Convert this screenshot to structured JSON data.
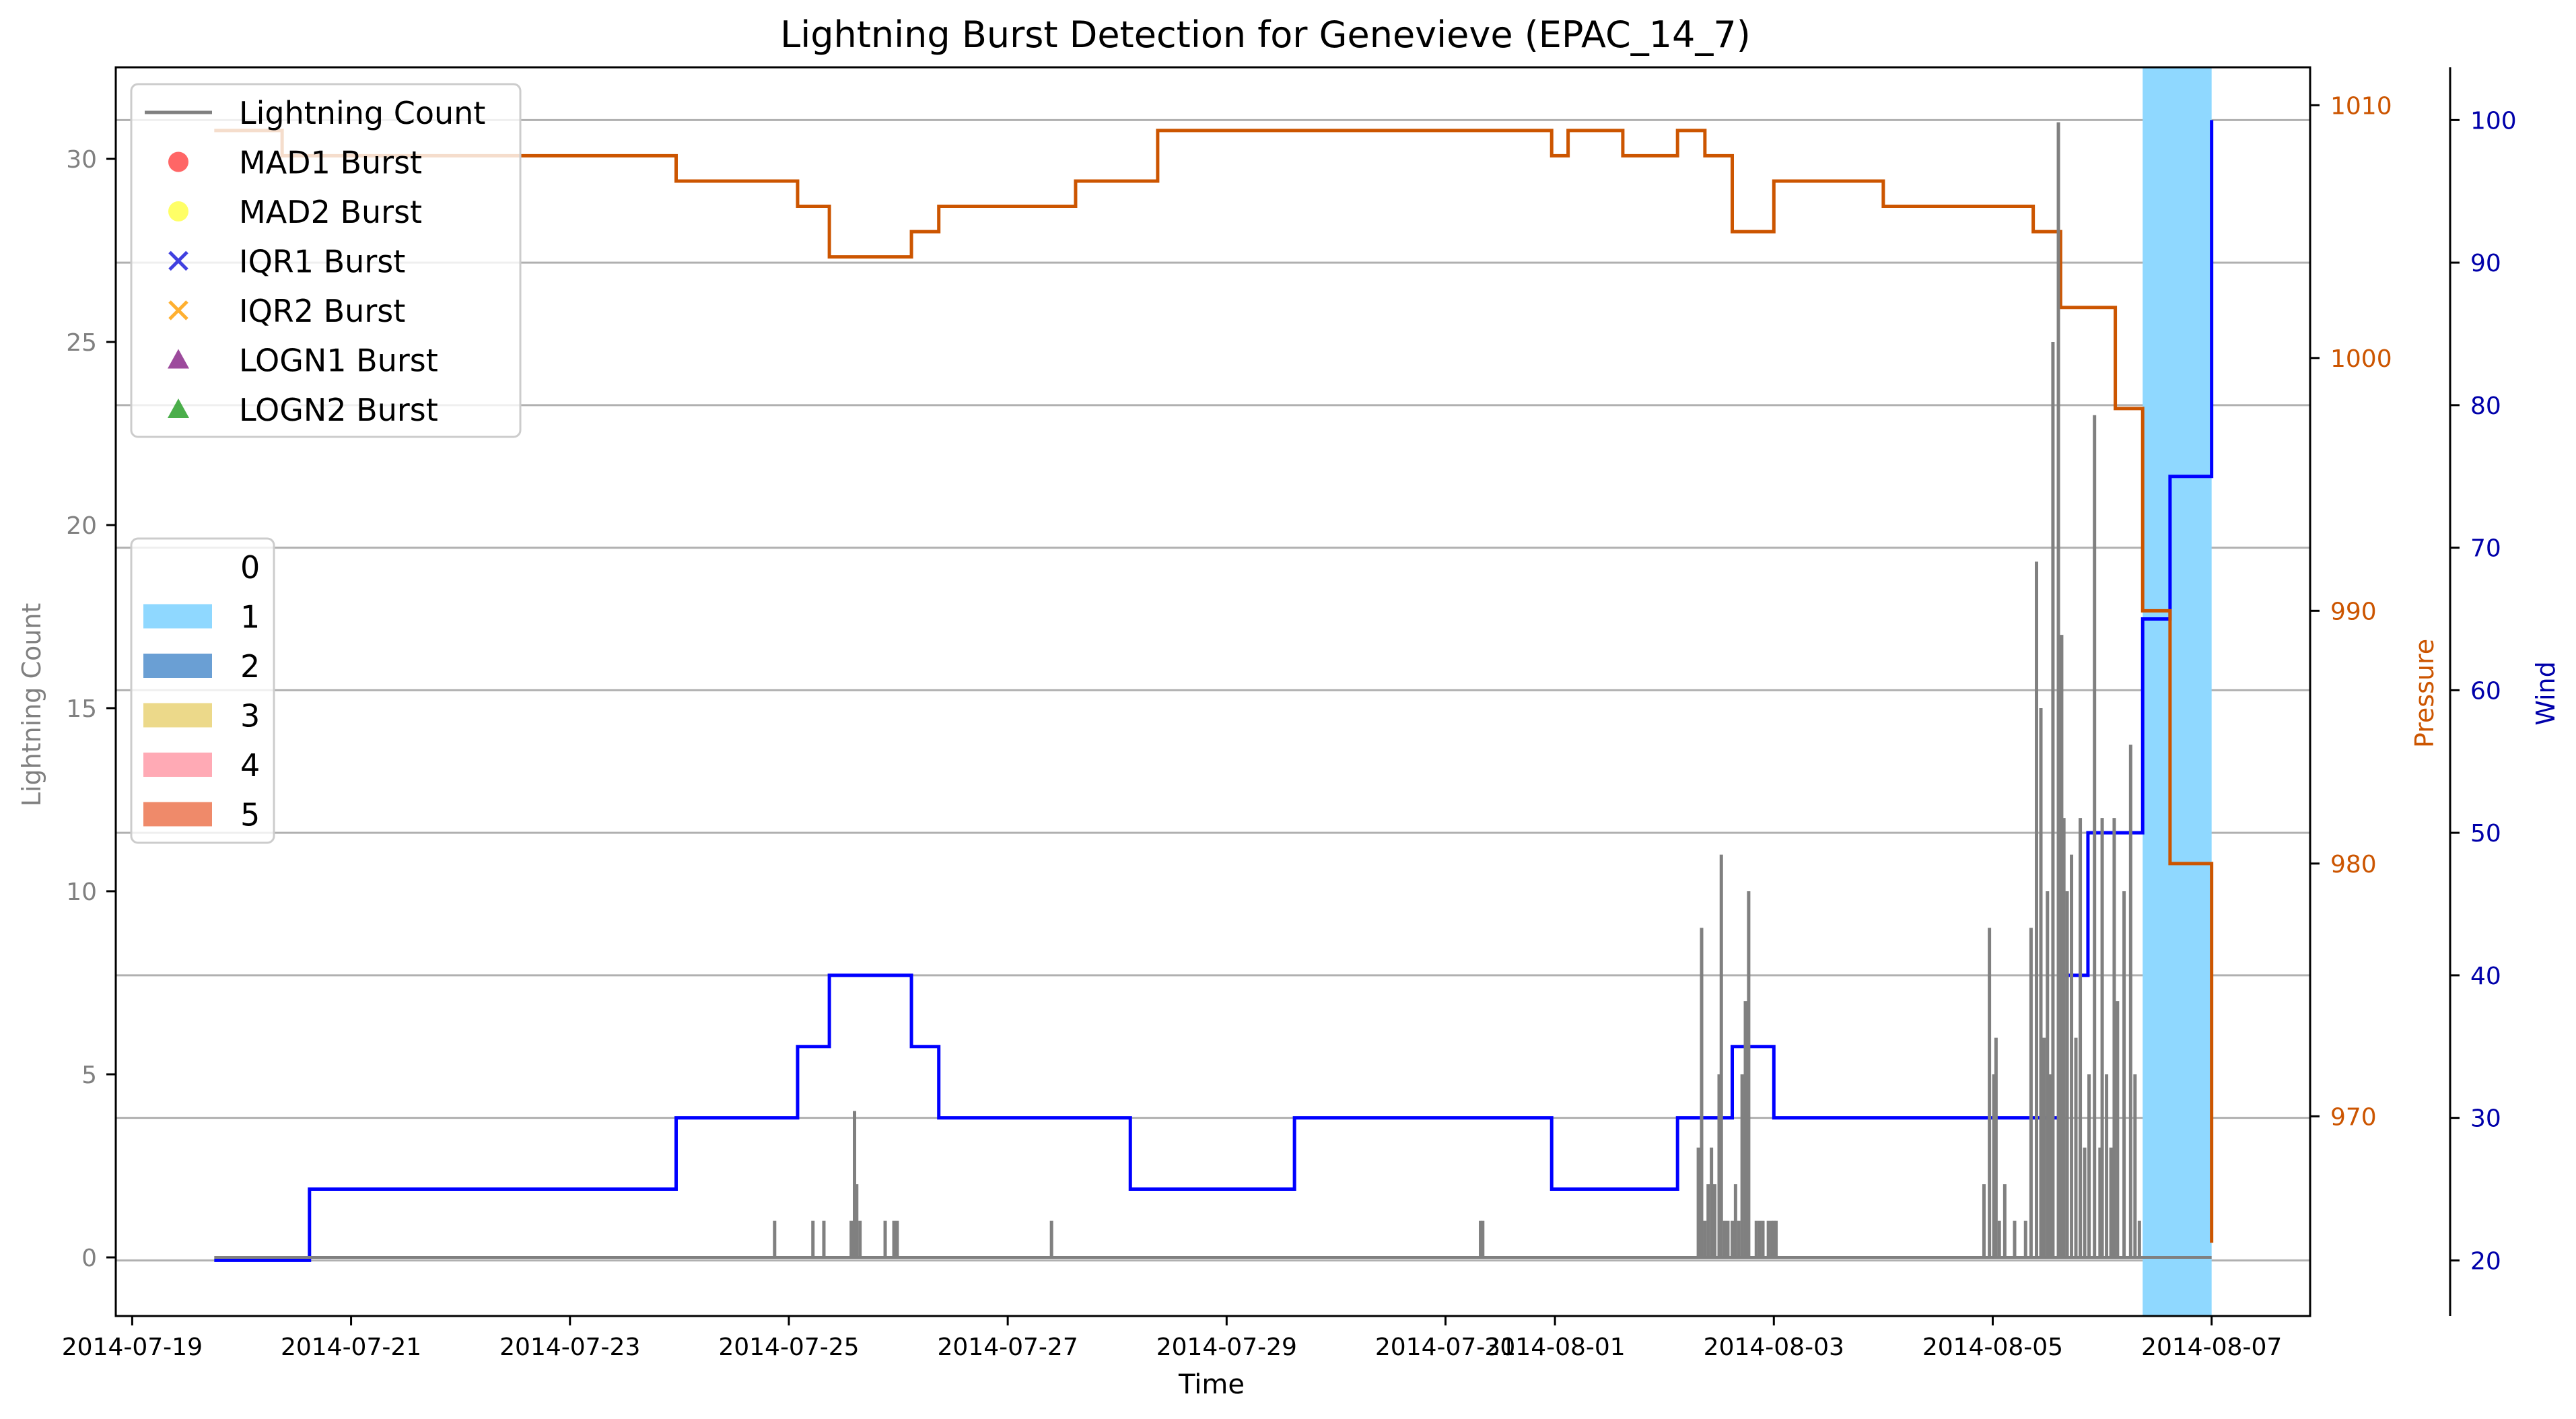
{
  "chart_data": {
    "type": "line",
    "title": "Lightning Burst Detection for Genevieve (EPAC_14_7)",
    "xlabel": "Time",
    "ylabel_left": "Lightning Count",
    "ylabel_pressure": "Pressure",
    "ylabel_wind": "Wind",
    "x_ticks": [
      "2014-07-19",
      "2014-07-21",
      "2014-07-23",
      "2014-07-25",
      "2014-07-27",
      "2014-07-29",
      "2014-07-31",
      "2014-08-01",
      "2014-08-03",
      "2014-08-05",
      "2014-08-07"
    ],
    "x_tick_values": [
      0,
      2,
      4,
      6,
      8,
      10,
      12,
      13,
      15,
      17,
      19
    ],
    "xlim": [
      -0.15,
      19.9
    ],
    "left_axis": {
      "ylim": [
        -1.6,
        32.5
      ],
      "ticks": [
        0,
        5,
        10,
        15,
        20,
        25,
        30
      ]
    },
    "pressure_axis": {
      "ylim": [
        962.1,
        1011.5
      ],
      "ticks": [
        970,
        980,
        990,
        1000,
        1010
      ],
      "color": "#cc5500"
    },
    "wind_axis": {
      "ylim": [
        16.1,
        103.7
      ],
      "ticks": [
        20,
        30,
        40,
        50,
        60,
        70,
        80,
        90,
        100
      ],
      "color": "#0000cc"
    },
    "grid": "horizontal lines at wind axis ticks",
    "legend_markers": [
      {
        "label": "Lightning Count",
        "marker": "line",
        "color": "#808080"
      },
      {
        "label": "MAD1 Burst",
        "marker": "circle",
        "color": "#ff4040"
      },
      {
        "label": "MAD2 Burst",
        "marker": "circle",
        "color": "#ffff40"
      },
      {
        "label": "IQR1 Burst",
        "marker": "x",
        "color": "#4040e0"
      },
      {
        "label": "IQR2 Burst",
        "marker": "x",
        "color": "#ffb030"
      },
      {
        "label": "LOGN1 Burst",
        "marker": "triangle",
        "color": "#8b2a8b"
      },
      {
        "label": "LOGN2 Burst",
        "marker": "triangle",
        "color": "#2aa02a"
      }
    ],
    "legend_categories": [
      {
        "label": "0",
        "color": null
      },
      {
        "label": "1",
        "color": "#8fd8ff"
      },
      {
        "label": "2",
        "color": "#6a9fd4"
      },
      {
        "label": "3",
        "color": "#ecd98a"
      },
      {
        "label": "4",
        "color": "#ffaab5"
      },
      {
        "label": "5",
        "color": "#ef8a6a"
      }
    ],
    "category_shading": [
      {
        "category": "1",
        "x0": 18.37,
        "x1": 19.0
      }
    ],
    "series": [
      {
        "name": "Wind",
        "axis": "wind",
        "color": "#0000ff",
        "step": true,
        "x": [
          0.75,
          1.62,
          4.97,
          6.08,
          6.37,
          7.12,
          7.37,
          9.12,
          10.62,
          12.97,
          14.12,
          14.62,
          15.0,
          17.62,
          17.87,
          18.37,
          18.62,
          19.0
        ],
        "y": [
          20,
          25,
          30,
          35,
          40,
          35,
          30,
          25,
          30,
          25,
          30,
          35,
          30,
          40,
          50,
          65,
          75,
          100
        ]
      },
      {
        "name": "Pressure",
        "axis": "pressure",
        "color": "#cc5500",
        "step": true,
        "x": [
          0.75,
          1.37,
          4.97,
          6.08,
          6.37,
          7.12,
          7.37,
          8.62,
          9.37,
          12.97,
          13.12,
          13.62,
          14.12,
          14.37,
          14.62,
          15.0,
          16.0,
          17.37,
          17.62,
          18.12,
          18.37,
          18.62,
          19.0
        ],
        "y": [
          1009,
          1008,
          1007,
          1006,
          1004,
          1005,
          1006,
          1007,
          1009,
          1008,
          1009,
          1008,
          1009,
          1008,
          1005,
          1007,
          1006,
          1005,
          1002,
          998,
          990,
          980,
          965
        ]
      },
      {
        "name": "Lightning Count",
        "axis": "left",
        "color": "#808080",
        "x": [
          5.87,
          6.22,
          6.32,
          6.57,
          6.6,
          6.62,
          6.65,
          6.88,
          6.96,
          6.99,
          8.4,
          12.32,
          12.34,
          14.31,
          14.34,
          14.37,
          14.4,
          14.43,
          14.46,
          14.5,
          14.52,
          14.55,
          14.58,
          14.62,
          14.65,
          14.68,
          14.71,
          14.74,
          14.77,
          14.84,
          14.87,
          14.9,
          14.95,
          14.98,
          15.0,
          15.02,
          16.92,
          16.97,
          17.01,
          17.03,
          17.06,
          17.11,
          17.2,
          17.3,
          17.35,
          17.4,
          17.44,
          17.47,
          17.5,
          17.52,
          17.55,
          17.6,
          17.63,
          17.65,
          17.68,
          17.72,
          17.76,
          17.8,
          17.84,
          17.88,
          17.93,
          17.98,
          18.0,
          18.04,
          18.08,
          18.11,
          18.14,
          18.2,
          18.26,
          18.3,
          18.34
        ],
        "y": [
          1,
          1,
          1,
          1,
          4,
          2,
          1,
          1,
          1,
          1,
          1,
          1,
          1,
          3,
          9,
          1,
          2,
          3,
          2,
          5,
          11,
          1,
          1,
          1,
          2,
          1,
          5,
          7,
          10,
          1,
          1,
          1,
          1,
          1,
          1,
          1,
          2,
          9,
          5,
          6,
          1,
          2,
          1,
          1,
          9,
          19,
          15,
          6,
          10,
          5,
          25,
          31,
          17,
          12,
          10,
          11,
          6,
          12,
          3,
          5,
          23,
          3,
          12,
          5,
          3,
          12,
          7,
          10,
          14,
          5,
          1
        ]
      }
    ]
  }
}
